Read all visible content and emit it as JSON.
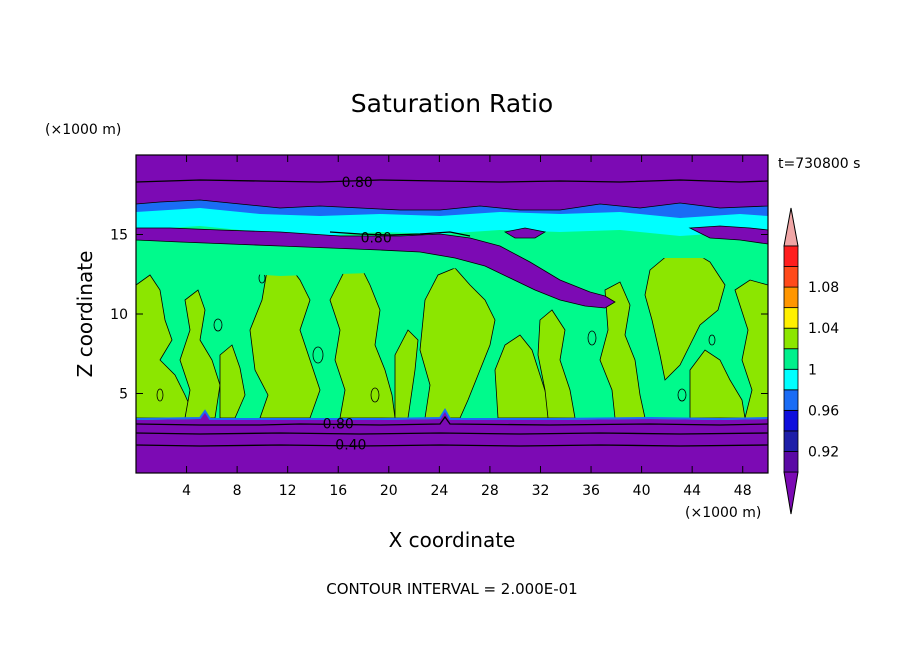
{
  "chart_data": {
    "type": "heatmap",
    "title": "Saturation Ratio",
    "xlabel": "X coordinate",
    "ylabel": "Z coordinate",
    "x_unit_note": "(×1000 m)",
    "y_unit_note": "(×1000 m)",
    "time_label": "t=730800 s",
    "footer": "CONTOUR INTERVAL = 2.000E-01",
    "xlim": [
      0,
      50
    ],
    "ylim": [
      0,
      20
    ],
    "x_ticks": [
      4,
      8,
      12,
      16,
      20,
      24,
      28,
      32,
      36,
      40,
      44,
      48
    ],
    "y_ticks": [
      5,
      10,
      15
    ],
    "contour_labels": [
      {
        "text": "0.80",
        "x": 17.5,
        "z": 18.3
      },
      {
        "text": "0.80",
        "x": 19,
        "z": 14.8
      },
      {
        "text": "0.80",
        "x": 16,
        "z": 3.1
      },
      {
        "text": "0.40",
        "x": 17,
        "z": 1.8
      }
    ],
    "colorbar": {
      "levels": [
        0.9,
        0.92,
        0.94,
        0.96,
        0.98,
        1.0,
        1.02,
        1.04,
        1.06,
        1.08,
        1.1
      ],
      "labels": [
        "0.92",
        "0.96",
        "1",
        "1.04",
        "1.08"
      ],
      "colors": [
        "#5b0aa5",
        "#1e1ea8",
        "#0f0fdc",
        "#1a6cf5",
        "#00ffff",
        "#00f08c",
        "#8ce600",
        "#fff000",
        "#ff9600",
        "#ff4a1a",
        "#ff1e1e"
      ],
      "under_color": "#7c0ab4",
      "over_color": "#f0a6a6"
    },
    "colors": {
      "dry": "#7c0ab4",
      "moist": "#00fa8c",
      "cloud": "#8ce600",
      "transition_cyan": "#00ffff",
      "transition_blue": "#1a6cf5"
    }
  }
}
